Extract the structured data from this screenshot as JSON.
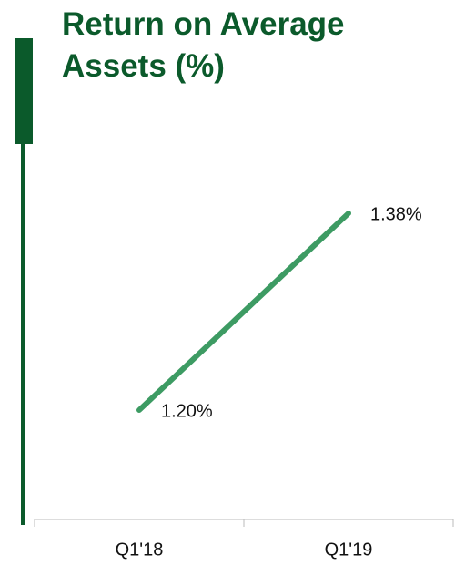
{
  "chart_data": {
    "type": "line",
    "title": "Return on Average Assets (%)",
    "categories": [
      "Q1'18",
      "Q1'19"
    ],
    "series": [
      {
        "name": null,
        "color": "#3d9b63",
        "values": [
          1.2,
          1.38
        ],
        "value_labels": [
          "1.20%",
          "1.38%"
        ]
      }
    ],
    "ylim": [
      1.1,
      1.45
    ]
  }
}
